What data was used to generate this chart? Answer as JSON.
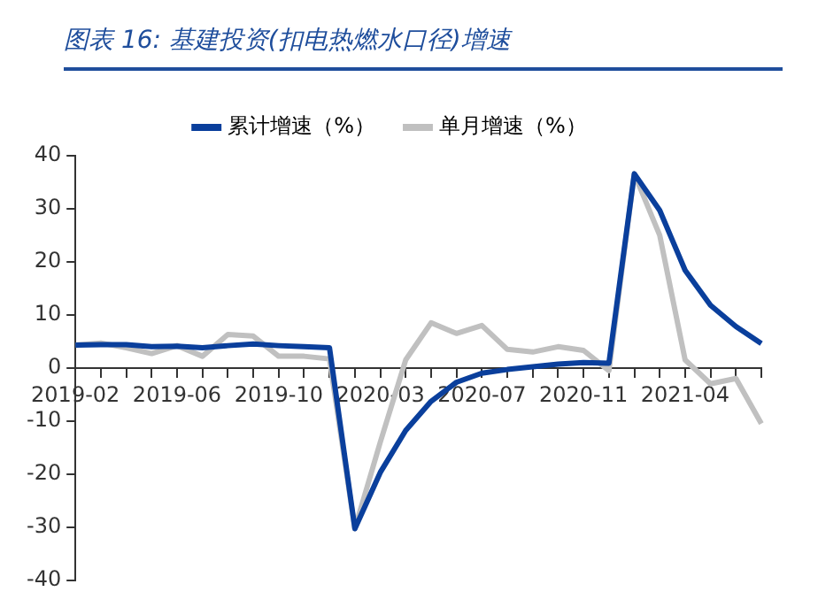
{
  "chart_data": {
    "type": "line",
    "title": "图表 16:  基建投资(扣电热燃水口径)增速",
    "categories": [
      "2019-02",
      null,
      null,
      null,
      "2019-06",
      null,
      null,
      null,
      "2019-10",
      null,
      null,
      null,
      "2020-03",
      null,
      null,
      null,
      "2020-07",
      null,
      null,
      null,
      "2020-11",
      null,
      null,
      null,
      "2021-04",
      null,
      null,
      null
    ],
    "series": [
      {
        "name": "累计增速（%）",
        "color": "#0a3f9c",
        "values": [
          4.3,
          4.4,
          4.4,
          4.0,
          4.1,
          3.8,
          4.2,
          4.5,
          4.2,
          4.0,
          3.8,
          -30.3,
          -19.7,
          -11.8,
          -6.3,
          -2.7,
          -1.0,
          -0.3,
          0.2,
          0.7,
          1.0,
          0.9,
          36.6,
          29.7,
          18.4,
          11.8,
          7.8,
          4.6
        ]
      },
      {
        "name": "单月增速（%）",
        "color": "#c0c0c0",
        "values": [
          4.3,
          4.7,
          3.8,
          2.7,
          4.2,
          2.2,
          6.3,
          6.0,
          2.2,
          2.2,
          1.7,
          -30.3,
          -14,
          1.5,
          8.5,
          6.5,
          8,
          3.5,
          3,
          4,
          3.3,
          -0.5,
          36.6,
          25,
          1.5,
          -3,
          -2,
          -10.5
        ]
      }
    ],
    "ylim": [
      -40,
      40
    ],
    "yticks": [
      -40,
      -30,
      -20,
      -10,
      0,
      10,
      20,
      30,
      40
    ],
    "grid": false,
    "legend": "top",
    "marker": "none",
    "line_style": "solid"
  }
}
